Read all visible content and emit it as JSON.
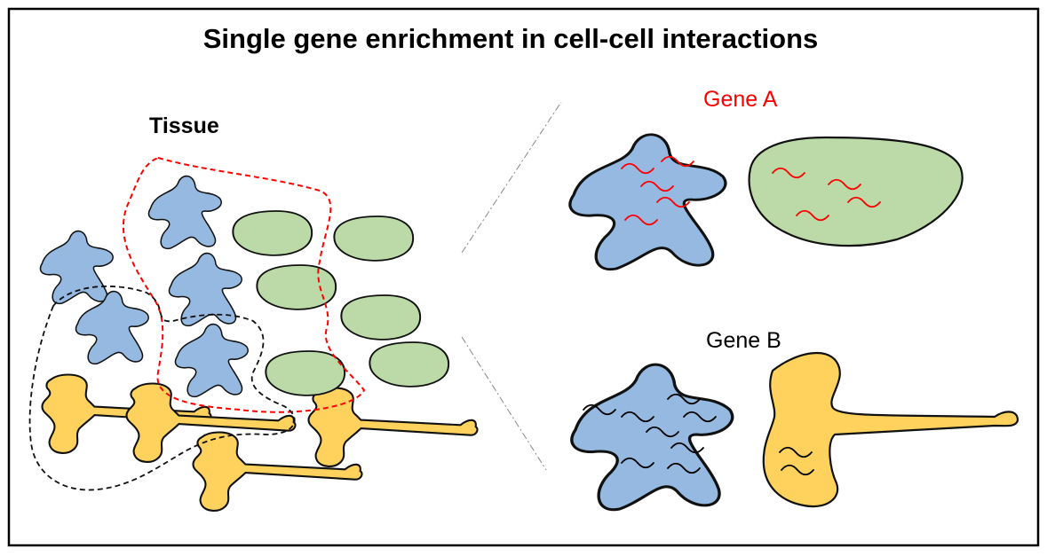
{
  "title": "Single gene enrichment in cell-cell interactions",
  "labels": {
    "tissue": "Tissue",
    "gene_a": "Gene A",
    "gene_b": "Gene B"
  },
  "colors": {
    "blue_cell": "#95b9e0",
    "green_cell": "#bcdaa7",
    "yellow_cell": "#fed25c",
    "gene_a": "#ff0000",
    "gene_b": "#000000",
    "outline": "#111111",
    "frame": "#000000"
  }
}
